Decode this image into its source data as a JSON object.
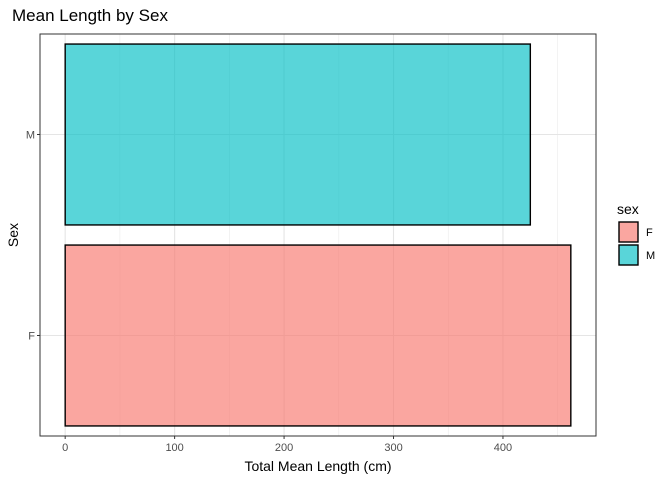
{
  "chart_data": {
    "type": "bar",
    "orientation": "horizontal",
    "title": "Mean Length by Sex",
    "xlabel": "Total Mean Length (cm)",
    "ylabel": "Sex",
    "categories": [
      "F",
      "M"
    ],
    "values": [
      462,
      425
    ],
    "colors": [
      "#F8766D",
      "#00BFC4"
    ],
    "xlim": [
      -23,
      485
    ],
    "x_ticks": [
      0,
      100,
      200,
      300,
      400
    ],
    "x_tick_labels": [
      "0",
      "100",
      "200",
      "300",
      "400"
    ],
    "grid": true,
    "legend": {
      "title": "sex",
      "placement": "right",
      "entries": [
        {
          "label": "F",
          "color": "#F8766D"
        },
        {
          "label": "M",
          "color": "#00BFC4"
        }
      ]
    }
  }
}
